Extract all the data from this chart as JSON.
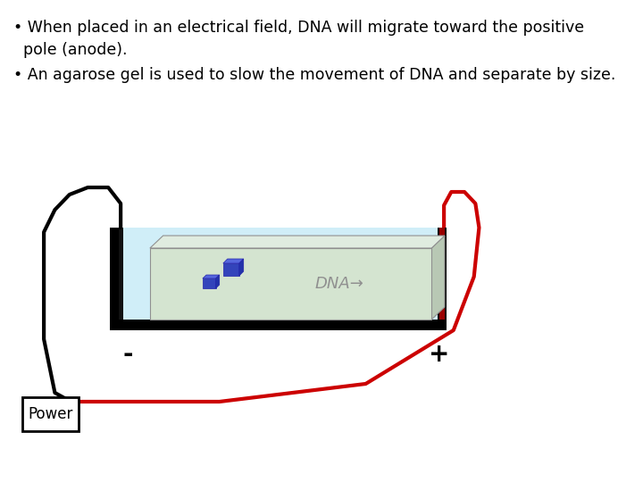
{
  "bg_color": "#ffffff",
  "text_bullet1_line1": "• When placed in an electrical field, DNA will migrate toward the positive",
  "text_bullet1_line2": "  pole (anode).",
  "text_bullet2": "• An agarose gel is used to slow the movement of DNA and separate by size.",
  "font_family": "DejaVu Sans",
  "text_fontsize": 12.5,
  "power_label": "Power",
  "dna_label": "DNA→",
  "minus_label": "-",
  "plus_label": "+",
  "water_color": "#d0eef8",
  "tub_border_color": "#000000",
  "gel_color": "#d4e4d0",
  "gel_top_color": "#e0ece0",
  "gel_right_color": "#b8c8b4",
  "gel_border_color": "#909090",
  "dna_rect1_color": "#3344bb",
  "dna_rect2_color": "#3344bb",
  "dna_text_color": "#909090",
  "wire_black_color": "#000000",
  "wire_red_color": "#cc0000",
  "power_box_color": "#ffffff",
  "power_box_border": "#000000",
  "electrode_color": "#111111"
}
